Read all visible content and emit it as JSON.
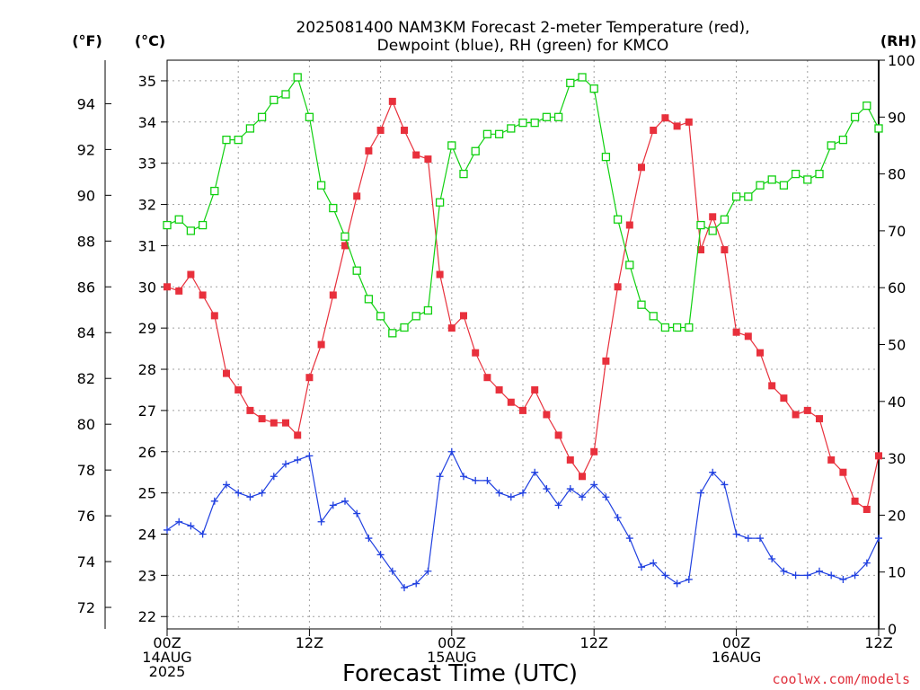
{
  "header": {
    "title_line1": "2025081400 NAM3KM Forecast 2-meter Temperature (red),",
    "title_line2": "Dewpoint (blue), RH (green) for KMCO"
  },
  "units": {
    "f": "(°F)",
    "c": "(°C)",
    "rh": "(RH)"
  },
  "credit": "coolwx.com/models",
  "chart_data": {
    "type": "line",
    "xlabel": "Forecast Time (UTC)",
    "x_hours": [
      0,
      1,
      2,
      3,
      4,
      5,
      6,
      7,
      8,
      9,
      10,
      11,
      12,
      13,
      14,
      15,
      16,
      17,
      18,
      19,
      20,
      21,
      22,
      23,
      24,
      25,
      26,
      27,
      28,
      29,
      30,
      31,
      32,
      33,
      34,
      35,
      36,
      37,
      38,
      39,
      40,
      41,
      42,
      43,
      44,
      45,
      46,
      47,
      48,
      49,
      50,
      51,
      52,
      53,
      54,
      55,
      56,
      57,
      58,
      59,
      60
    ],
    "x_ticks": [
      {
        "hour": 0,
        "lines": [
          "00Z",
          "14AUG",
          "2025"
        ]
      },
      {
        "hour": 12,
        "lines": [
          "12Z"
        ]
      },
      {
        "hour": 24,
        "lines": [
          "00Z",
          "15AUG"
        ]
      },
      {
        "hour": 36,
        "lines": [
          "12Z"
        ]
      },
      {
        "hour": 48,
        "lines": [
          "00Z",
          "16AUG"
        ]
      },
      {
        "hour": 60,
        "lines": [
          "12Z"
        ]
      }
    ],
    "xlim": [
      0,
      60
    ],
    "ylim_c": [
      21.7,
      35.5
    ],
    "ylim_rh": [
      0,
      100
    ],
    "y_ticks_c": [
      22,
      23,
      24,
      25,
      26,
      27,
      28,
      29,
      30,
      31,
      32,
      33,
      34,
      35
    ],
    "y_ticks_f": [
      72,
      74,
      76,
      78,
      80,
      82,
      84,
      86,
      88,
      90,
      92,
      94
    ],
    "y_ticks_rh": [
      0,
      10,
      20,
      30,
      40,
      50,
      60,
      70,
      80,
      90,
      100
    ],
    "grid": true,
    "series": [
      {
        "name": "Temperature",
        "color": "#e8303c",
        "marker": "filled-square",
        "axis": "c",
        "values": [
          30.0,
          29.9,
          30.3,
          29.8,
          29.3,
          27.9,
          27.5,
          27.0,
          26.8,
          26.7,
          26.7,
          26.4,
          27.8,
          28.6,
          29.8,
          31.0,
          32.2,
          33.3,
          33.8,
          34.5,
          33.8,
          33.2,
          33.1,
          30.3,
          29.0,
          29.3,
          28.4,
          27.8,
          27.5,
          27.2,
          27.0,
          27.5,
          26.9,
          26.4,
          25.8,
          25.4,
          26.0,
          28.2,
          30.0,
          31.5,
          32.9,
          33.8,
          34.1,
          33.9,
          34.0,
          30.9,
          31.7,
          30.9,
          28.9,
          28.8,
          28.4,
          27.6,
          27.3,
          26.9,
          27.0,
          26.8,
          25.8,
          25.5,
          24.8,
          24.6,
          25.9
        ]
      },
      {
        "name": "Dewpoint",
        "color": "#2040e0",
        "marker": "plus",
        "axis": "c",
        "values": [
          24.1,
          24.3,
          24.2,
          24.0,
          24.8,
          25.2,
          25.0,
          24.9,
          25.0,
          25.4,
          25.7,
          25.8,
          25.9,
          24.3,
          24.7,
          24.8,
          24.5,
          23.9,
          23.5,
          23.1,
          22.7,
          22.8,
          23.1,
          25.4,
          26.0,
          25.4,
          25.3,
          25.3,
          25.0,
          24.9,
          25.0,
          25.5,
          25.1,
          24.7,
          25.1,
          24.9,
          25.2,
          24.9,
          24.4,
          23.9,
          23.2,
          23.3,
          23.0,
          22.8,
          22.9,
          25.0,
          25.5,
          25.2,
          24.0,
          23.9,
          23.9,
          23.4,
          23.1,
          23.0,
          23.0,
          23.1,
          23.0,
          22.9,
          23.0,
          23.3,
          23.9
        ]
      },
      {
        "name": "RH",
        "color": "#10d010",
        "marker": "open-square",
        "axis": "rh",
        "values": [
          71,
          72,
          70,
          71,
          77,
          86,
          86,
          88,
          90,
          93,
          94,
          97,
          90,
          78,
          74,
          69,
          63,
          58,
          55,
          52,
          53,
          55,
          56,
          75,
          85,
          80,
          84,
          87,
          87,
          88,
          89,
          89,
          90,
          90,
          96,
          97,
          95,
          83,
          72,
          64,
          57,
          55,
          53,
          53,
          53,
          71,
          70,
          72,
          76,
          76,
          78,
          79,
          78,
          80,
          79,
          80,
          85,
          86,
          90,
          92,
          88
        ]
      }
    ]
  }
}
